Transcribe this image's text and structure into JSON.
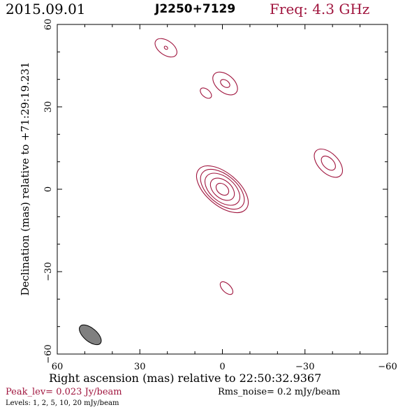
{
  "header": {
    "date": "2015.09.01",
    "source": "J2250+7129",
    "freq_label": "Freq:",
    "freq_value": "4.3 GHz"
  },
  "axes": {
    "xlabel": "Right ascension (mas) relative to 22:50:32.9367",
    "ylabel": "Declination (mas) relative to +71:29:19.231",
    "xlim": [
      60,
      -60
    ],
    "ylim": [
      -60,
      60
    ],
    "x_ticks": [
      "60",
      "30",
      "0",
      "−30",
      "−60"
    ],
    "y_ticks": [
      "60",
      "30",
      "0",
      "−30",
      "−60"
    ]
  },
  "footer": {
    "peak_label": "Peak_lev=",
    "peak_value": "0.023 Jy/beam",
    "rms_label": "Rms_noise=",
    "rms_value": "0.2 mJy/beam",
    "levels_label": "Levels:",
    "levels_value": "1,   2,   5,  10,  20 mJy/beam"
  },
  "colors": {
    "contour": "#a0153e",
    "beam_fill": "#808080",
    "text_accent": "#a0153e"
  },
  "chart_data": {
    "type": "contour",
    "components": [
      {
        "ra": 0,
        "dec": 0,
        "levels": [
          {
            "a": 2.6,
            "b": 1.8,
            "pa": 40
          },
          {
            "a": 5.0,
            "b": 3.2,
            "pa": 40
          },
          {
            "a": 7.4,
            "b": 4.4,
            "pa": 40
          },
          {
            "a": 9.4,
            "b": 5.2,
            "pa": 40
          },
          {
            "a": 11.2,
            "b": 5.9,
            "pa": 40
          }
        ]
      },
      {
        "ra": -1,
        "dec": 38.5,
        "levels": [
          {
            "a": 1.9,
            "b": 1.2,
            "pa": 35
          },
          {
            "a": 5.2,
            "b": 3.2,
            "pa": 40
          }
        ]
      },
      {
        "ra": 6,
        "dec": 35,
        "levels": [
          {
            "a": 2.4,
            "b": 1.4,
            "pa": 40
          }
        ]
      },
      {
        "ra": 20.5,
        "dec": 51.5,
        "levels": [
          {
            "a": 0.7,
            "b": 0.5,
            "pa": 40
          },
          {
            "a": 4.5,
            "b": 2.6,
            "pa": 35
          }
        ]
      },
      {
        "ra": -38.5,
        "dec": 9.5,
        "levels": [
          {
            "a": 3.1,
            "b": 1.9,
            "pa": 45
          },
          {
            "a": 6.3,
            "b": 3.6,
            "pa": 45
          }
        ]
      },
      {
        "ra": -1.5,
        "dec": -36,
        "levels": [
          {
            "a": 2.9,
            "b": 1.5,
            "pa": 45
          }
        ]
      }
    ],
    "beam": {
      "ra": 48,
      "dec": -53,
      "a": 4.8,
      "b": 2.4,
      "pa": 40
    }
  }
}
